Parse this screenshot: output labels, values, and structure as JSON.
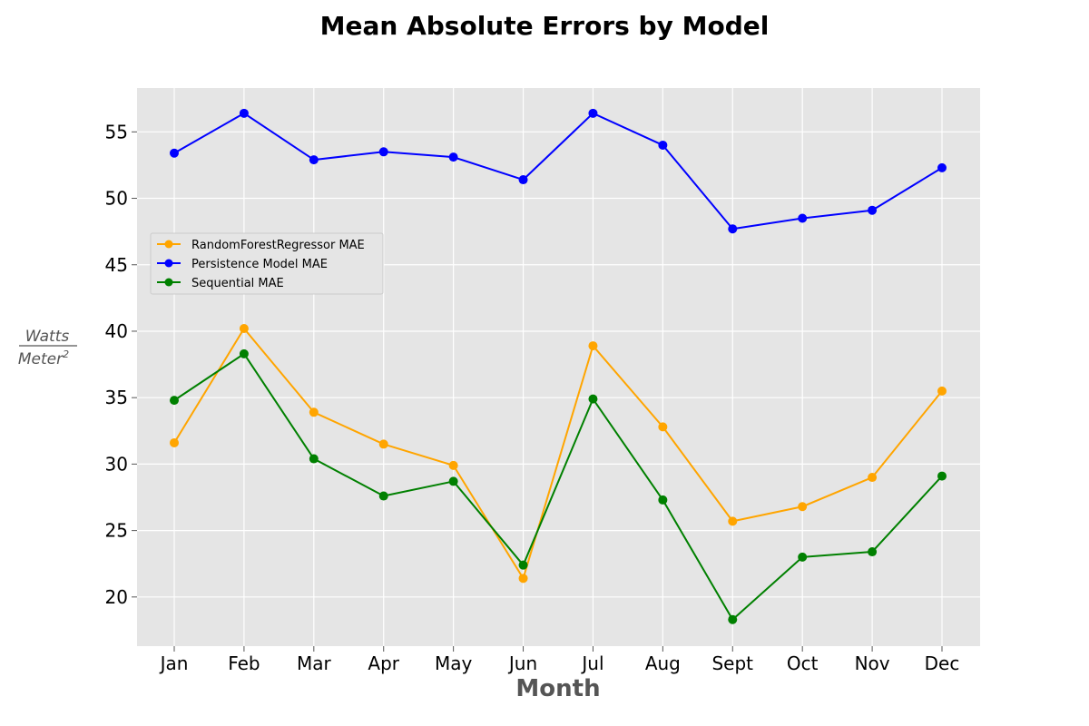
{
  "chart_data": {
    "type": "line",
    "title": "Mean Absolute Errors by Model",
    "xlabel": "Month",
    "ylabel_numerator": "Watts",
    "ylabel_denominator": "Meter",
    "ylabel_exponent": "2",
    "categories": [
      "Jan",
      "Feb",
      "Mar",
      "Apr",
      "May",
      "Jun",
      "Jul",
      "Aug",
      "Sept",
      "Oct",
      "Nov",
      "Dec"
    ],
    "ylim": [
      16.3,
      58.3
    ],
    "yticks": [
      "20",
      "25",
      "30",
      "35",
      "40",
      "45",
      "50",
      "55"
    ],
    "grid": true,
    "legend_position": "upper-left",
    "series": [
      {
        "name": "RandomForestRegressor MAE",
        "color": "#ffa500",
        "values": [
          31.6,
          40.2,
          33.9,
          31.5,
          29.9,
          21.4,
          38.9,
          32.8,
          25.7,
          26.8,
          29.0,
          35.5
        ]
      },
      {
        "name": "Persistence Model MAE",
        "color": "#0000ff",
        "values": [
          53.4,
          56.4,
          52.9,
          53.5,
          53.1,
          51.4,
          56.4,
          54.0,
          47.7,
          48.5,
          49.1,
          52.3
        ]
      },
      {
        "name": "Sequential MAE",
        "color": "#008000",
        "values": [
          34.8,
          38.3,
          30.4,
          27.6,
          28.7,
          22.4,
          34.9,
          27.3,
          18.3,
          23.0,
          23.4,
          29.1
        ]
      }
    ]
  }
}
